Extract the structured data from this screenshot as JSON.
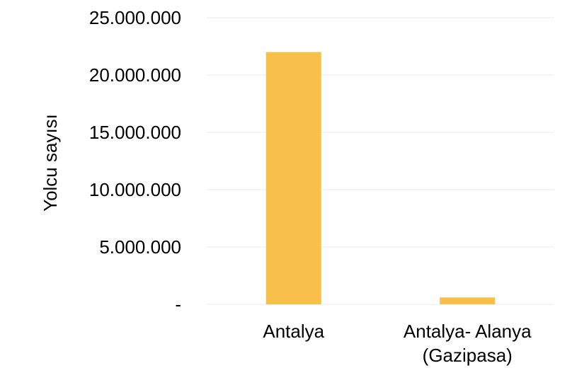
{
  "chart_data": {
    "type": "bar",
    "title": "",
    "xlabel": "",
    "ylabel": "Yolcu sayısı",
    "categories": [
      [
        "Antalya"
      ],
      [
        "Antalya- Alanya",
        "(Gazipasa)"
      ]
    ],
    "values": [
      22000000,
      600000
    ],
    "ylim": [
      0,
      25000000
    ],
    "yticks": [
      0,
      5000000,
      10000000,
      15000000,
      20000000,
      25000000
    ],
    "ytick_labels": [
      "-",
      "5.000.000",
      "10.000.000",
      "15.000.000",
      "20.000.000",
      "25.000.000"
    ],
    "grid": true,
    "legend": "none",
    "bar_color": "#F9BF4B"
  }
}
